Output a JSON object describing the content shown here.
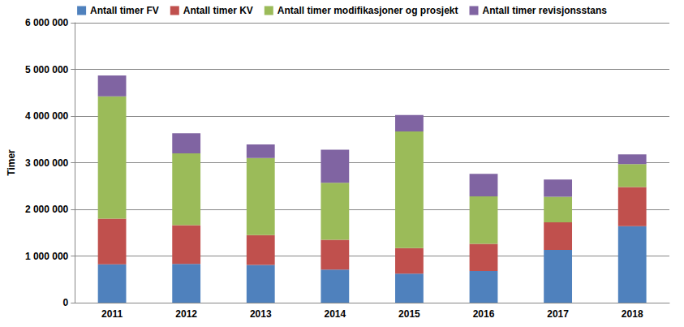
{
  "chart_data": {
    "type": "bar",
    "stacked": true,
    "grid": true,
    "legend": "top",
    "y_label": "Timer",
    "categories": [
      "2011",
      "2012",
      "2013",
      "2014",
      "2015",
      "2016",
      "2017",
      "2018"
    ],
    "series": [
      {
        "name": "Antall timer FV",
        "color": "#4F81BD",
        "values": [
          820000,
          830000,
          810000,
          710000,
          620000,
          680000,
          1130000,
          1640000
        ]
      },
      {
        "name": "Antall timer KV",
        "color": "#C0504D",
        "values": [
          980000,
          830000,
          640000,
          640000,
          550000,
          580000,
          590000,
          840000
        ]
      },
      {
        "name": "Antall timer modifikasjoner og prosjekt",
        "color": "#9BBB59",
        "values": [
          2620000,
          1540000,
          1650000,
          1220000,
          2500000,
          1020000,
          550000,
          490000
        ]
      },
      {
        "name": "Antall timer revisjonsstans",
        "color": "#8064A2",
        "values": [
          450000,
          430000,
          290000,
          710000,
          350000,
          480000,
          370000,
          210000
        ]
      }
    ],
    "ylim": [
      0,
      6000000
    ],
    "yticks": [
      0,
      {
        "value": 1000000,
        "label": "1 000 000"
      },
      {
        "value": 2000000,
        "label": "2 000 000"
      },
      {
        "value": 3000000,
        "label": "3 000 000"
      },
      {
        "value": 4000000,
        "label": "4 000 000"
      },
      {
        "value": 5000000,
        "label": "5 000 000"
      },
      {
        "value": 6000000,
        "label": "6 000 000"
      }
    ]
  }
}
